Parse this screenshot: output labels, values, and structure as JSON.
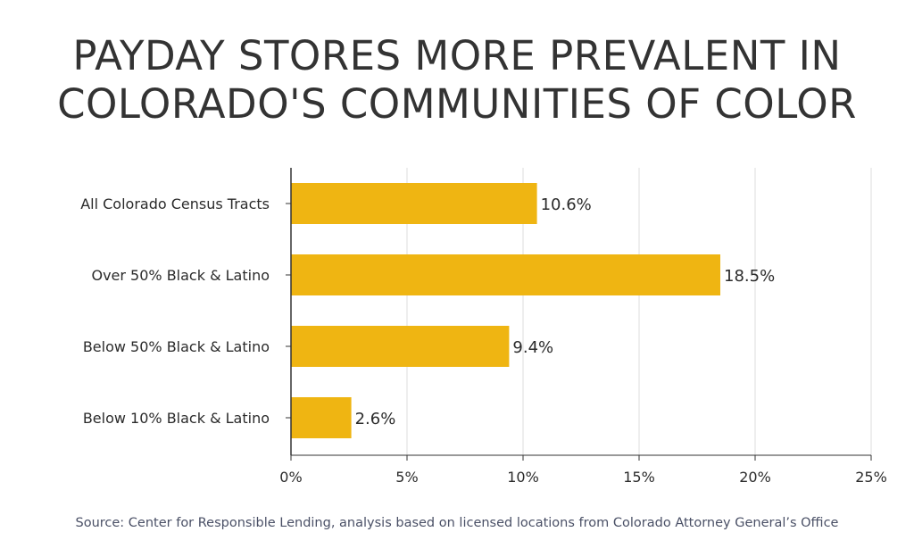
{
  "title_line1": "PAYDAY STORES MORE PREVALENT IN",
  "title_line2": "COLORADO'S COMMUNITIES OF COLOR",
  "source": "Source: Center for Responsible Lending, analysis based on licensed locations from Colorado Attorney General’s Office",
  "colors": {
    "bar": "#EFB512",
    "grid": "#dcdcdc",
    "axis": "#333333",
    "text": "#2b2b2b"
  },
  "chart_data": {
    "type": "bar",
    "orientation": "horizontal",
    "categories": [
      "All Colorado Census Tracts",
      "Over 50% Black & Latino",
      "Below 50% Black & Latino",
      "Below 10% Black & Latino"
    ],
    "values": [
      10.6,
      18.5,
      9.4,
      2.6
    ],
    "value_labels": [
      "10.6%",
      "18.5%",
      "9.4%",
      "2.6%"
    ],
    "xlim": [
      0,
      25
    ],
    "xticks": [
      0,
      5,
      10,
      15,
      20,
      25
    ],
    "xtick_labels": [
      "0%",
      "5%",
      "10%",
      "15%",
      "20%",
      "25%"
    ],
    "grid": "vertical"
  }
}
